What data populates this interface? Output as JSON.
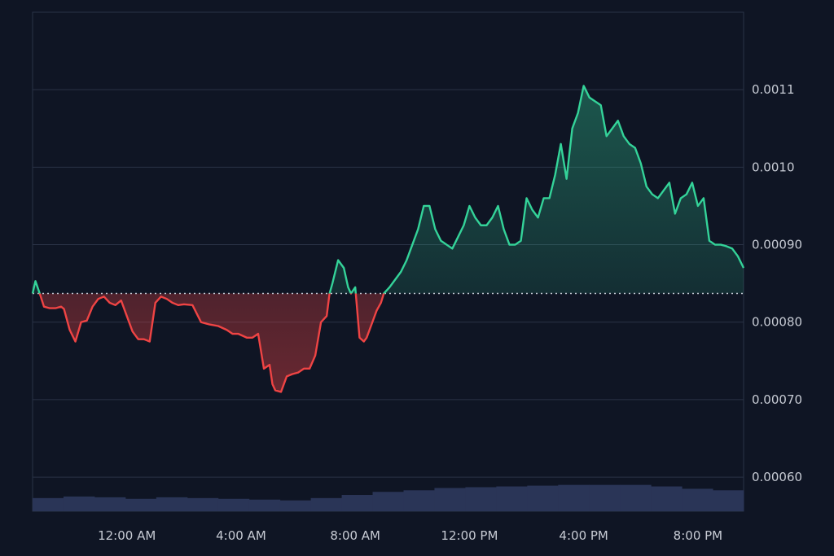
{
  "chart_data": {
    "type": "area",
    "title": "",
    "xlabel": "",
    "ylabel": "",
    "x_tick_labels": [
      "12:00 AM",
      "4:00 AM",
      "8:00 AM",
      "12:00 PM",
      "4:00 PM",
      "8:00 PM"
    ],
    "x_tick_hours": [
      24,
      28,
      32,
      36,
      40,
      44
    ],
    "x_range_hours": [
      20.7,
      45.6
    ],
    "y_tick_labels": [
      "0.0011",
      "0.0010",
      "0.00090",
      "0.00080",
      "0.00070",
      "0.00060"
    ],
    "y_ticks": [
      0.0011,
      0.001,
      0.0009,
      0.0008,
      0.0007,
      0.0006
    ],
    "ylim": [
      0.000556,
      0.0012
    ],
    "baseline": 0.000837,
    "series": [
      {
        "x": [
          20.7,
          20.8,
          20.95,
          21.1,
          21.3,
          21.5,
          21.7,
          21.8,
          22.0,
          22.2,
          22.4,
          22.6,
          22.8,
          23.0,
          23.2,
          23.4,
          23.6,
          23.8,
          24.2,
          24.4,
          24.6,
          24.8,
          25.0,
          25.2,
          25.4,
          25.6,
          25.8,
          26.0,
          26.3,
          26.6,
          26.9,
          27.2,
          27.5,
          27.7,
          27.9,
          28.2,
          28.4,
          28.6,
          28.8,
          29.0,
          29.1,
          29.2,
          29.4,
          29.6,
          29.8,
          30.0,
          30.2,
          30.4,
          30.6,
          30.8,
          31.0,
          31.1,
          31.2,
          31.4,
          31.6,
          31.75,
          31.85,
          32.0,
          32.15,
          32.3,
          32.4,
          32.5,
          32.6,
          32.75,
          32.9,
          33.0,
          33.2,
          33.4,
          33.6,
          33.8,
          34.0,
          34.2,
          34.4,
          34.6,
          34.8,
          35.0,
          35.2,
          35.4,
          35.6,
          35.8,
          36.0,
          36.2,
          36.4,
          36.6,
          36.8,
          37.0,
          37.2,
          37.4,
          37.6,
          37.8,
          38.0,
          38.2,
          38.4,
          38.6,
          38.8,
          39.0,
          39.2,
          39.4,
          39.6,
          39.8,
          40.0,
          40.2,
          40.4,
          40.6,
          40.8,
          41.0,
          41.2,
          41.4,
          41.6,
          41.8,
          42.0,
          42.2,
          42.4,
          42.6,
          42.8,
          43.0,
          43.2,
          43.4,
          43.6,
          43.8,
          44.0,
          44.2,
          44.4,
          44.6,
          44.8,
          45.0,
          45.2,
          45.4,
          45.6
        ],
        "y": [
          0.000837,
          0.000853,
          0.000837,
          0.00082,
          0.000818,
          0.000818,
          0.00082,
          0.000817,
          0.00079,
          0.000775,
          0.0008,
          0.000802,
          0.00082,
          0.00083,
          0.000833,
          0.000825,
          0.000822,
          0.000828,
          0.000788,
          0.000778,
          0.000778,
          0.000775,
          0.000825,
          0.000833,
          0.00083,
          0.000825,
          0.000822,
          0.000823,
          0.000822,
          0.0008,
          0.000797,
          0.000795,
          0.00079,
          0.000785,
          0.000785,
          0.00078,
          0.00078,
          0.000785,
          0.00074,
          0.000745,
          0.00072,
          0.000712,
          0.00071,
          0.00073,
          0.000733,
          0.000735,
          0.00074,
          0.00074,
          0.000757,
          0.0008,
          0.000808,
          0.000837,
          0.00085,
          0.00088,
          0.00087,
          0.000845,
          0.000837,
          0.000845,
          0.00078,
          0.000775,
          0.00078,
          0.00079,
          0.0008,
          0.000815,
          0.000825,
          0.000837,
          0.000845,
          0.000855,
          0.000865,
          0.00088,
          0.0009,
          0.00092,
          0.00095,
          0.00095,
          0.00092,
          0.000905,
          0.0009,
          0.000895,
          0.00091,
          0.000925,
          0.00095,
          0.000935,
          0.000925,
          0.000925,
          0.000935,
          0.00095,
          0.00092,
          0.0009,
          0.0009,
          0.000905,
          0.00096,
          0.000945,
          0.000935,
          0.00096,
          0.00096,
          0.00099,
          0.00103,
          0.000985,
          0.00105,
          0.00107,
          0.001105,
          0.00109,
          0.001085,
          0.00108,
          0.00104,
          0.00105,
          0.00106,
          0.00104,
          0.00103,
          0.001025,
          0.001005,
          0.000975,
          0.000965,
          0.00096,
          0.00097,
          0.00098,
          0.00094,
          0.00096,
          0.000965,
          0.00098,
          0.00095,
          0.00096,
          0.000905,
          0.0009,
          0.0009,
          0.000898,
          0.000895,
          0.000885,
          0.00087
        ]
      }
    ],
    "volume": {
      "start_hour": 20.7,
      "end_hour": 45.6,
      "values": [
        0.000573,
        0.000575,
        0.000574,
        0.000572,
        0.000574,
        0.000573,
        0.000572,
        0.000571,
        0.00057,
        0.000573,
        0.000577,
        0.000581,
        0.000583,
        0.000586,
        0.000587,
        0.000588,
        0.000589,
        0.00059,
        0.00059,
        0.00059,
        0.000588,
        0.000585,
        0.000583
      ]
    },
    "grid": true,
    "colors": {
      "background": "#0f1524",
      "grid": "#2a3346",
      "up_line": "#34d399",
      "down_line": "#ef4444",
      "baseline": "#c4c9d4",
      "volume": "#2a3557",
      "tick_text": "#c7cbd4"
    }
  }
}
